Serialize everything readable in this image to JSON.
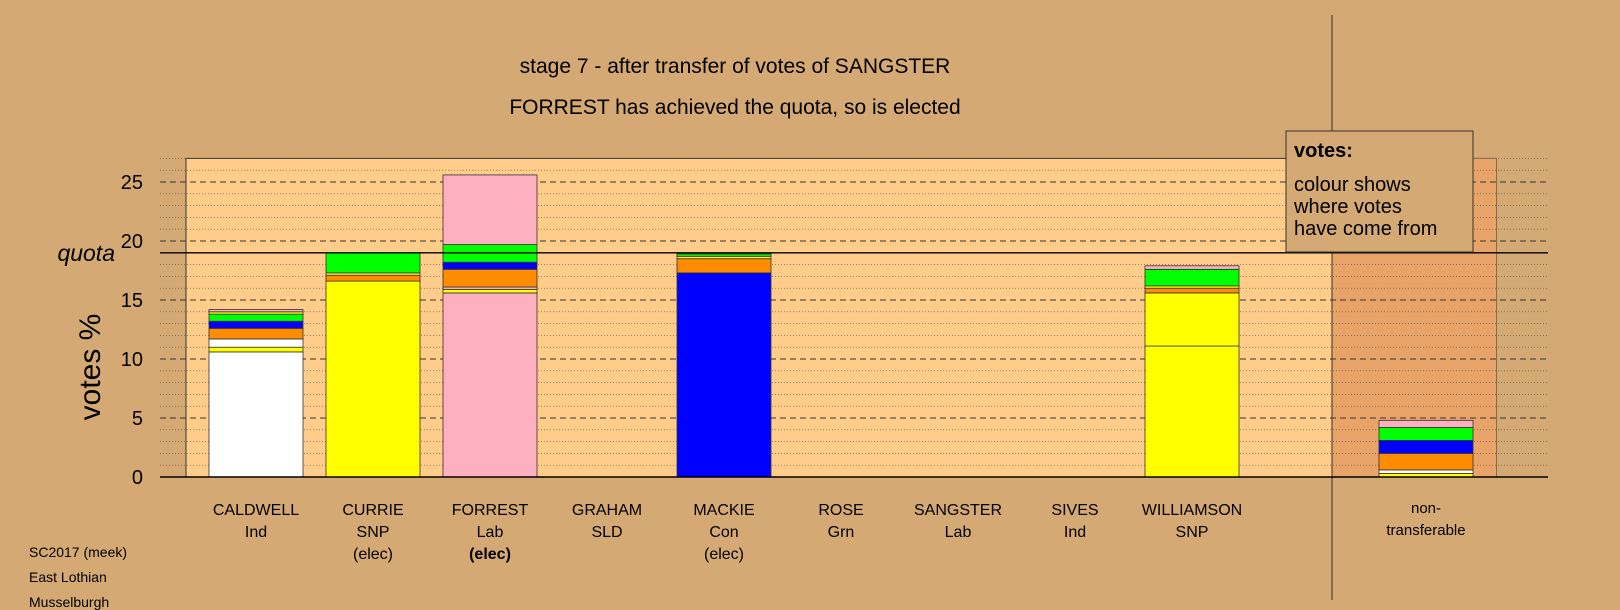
{
  "chart_data": {
    "type": "bar",
    "stacked": true,
    "title": "stage 7 - after transfer of votes of SANGSTER",
    "subtitle": "FORREST has achieved the quota, so is elected",
    "ylabel": "votes %",
    "ylim": [
      0,
      27
    ],
    "yticks": [
      0,
      5,
      10,
      15,
      20,
      25
    ],
    "quota": 19.0,
    "quota_label": "quota",
    "legend": {
      "title": "votes:",
      "lines": [
        "colour shows",
        "where votes",
        "have come from"
      ],
      "placement": "top-right"
    },
    "candidates": [
      {
        "name": "CALDWELL",
        "party": "Ind",
        "status": "",
        "status_bold": false,
        "segments": [
          {
            "value": 10.6,
            "color": "#ffffff"
          },
          {
            "value": 0.4,
            "color": "#ffff00"
          },
          {
            "value": 0.7,
            "color": "#ffffff"
          },
          {
            "value": 0.9,
            "color": "#ff8c00"
          },
          {
            "value": 0.6,
            "color": "#0000ff"
          },
          {
            "value": 0.6,
            "color": "#00ff00"
          },
          {
            "value": 0.2,
            "color": "#ffff00"
          },
          {
            "value": 0.2,
            "color": "#ffb0c0"
          }
        ]
      },
      {
        "name": "CURRIE",
        "party": "SNP",
        "status": "(elec)",
        "status_bold": false,
        "segments": [
          {
            "value": 16.6,
            "color": "#ffff00"
          },
          {
            "value": 0.5,
            "color": "#ff8c00"
          },
          {
            "value": 0.2,
            "color": "#ffff00"
          },
          {
            "value": 1.7,
            "color": "#00ff00"
          }
        ]
      },
      {
        "name": "FORREST",
        "party": "Lab",
        "status": "(elec)",
        "status_bold": true,
        "segments": [
          {
            "value": 15.6,
            "color": "#ffb0c0"
          },
          {
            "value": 0.3,
            "color": "#ffff00"
          },
          {
            "value": 0.2,
            "color": "#ffb0c0"
          },
          {
            "value": 1.5,
            "color": "#ff8c00"
          },
          {
            "value": 0.6,
            "color": "#0000ff"
          },
          {
            "value": 1.5,
            "color": "#00ff00"
          },
          {
            "value": 5.9,
            "color": "#ffb0c0"
          }
        ]
      },
      {
        "name": "GRAHAM",
        "party": "SLD",
        "status": "",
        "status_bold": false,
        "segments": []
      },
      {
        "name": "MACKIE",
        "party": "Con",
        "status": "(elec)",
        "status_bold": false,
        "segments": [
          {
            "value": 17.3,
            "color": "#0000ff"
          },
          {
            "value": 1.2,
            "color": "#ff8c00"
          },
          {
            "value": 0.2,
            "color": "#ffff00"
          },
          {
            "value": 0.2,
            "color": "#00ff00"
          },
          {
            "value": 0.1,
            "color": "#ffb0c0"
          }
        ]
      },
      {
        "name": "ROSE",
        "party": "Grn",
        "status": "",
        "status_bold": false,
        "segments": []
      },
      {
        "name": "SANGSTER",
        "party": "Lab",
        "status": "",
        "status_bold": false,
        "segments": []
      },
      {
        "name": "SIVES",
        "party": "Ind",
        "status": "",
        "status_bold": false,
        "segments": []
      },
      {
        "name": "WILLIAMSON",
        "party": "SNP",
        "status": "",
        "status_bold": false,
        "segments": [
          {
            "value": 11.1,
            "color": "#ffff00"
          },
          {
            "value": 4.5,
            "color": "#ffff00"
          },
          {
            "value": 0.4,
            "color": "#ff8c00"
          },
          {
            "value": 0.2,
            "color": "#ffff00"
          },
          {
            "value": 1.4,
            "color": "#00ff00"
          },
          {
            "value": 0.3,
            "color": "#ffb0c0"
          }
        ]
      }
    ],
    "nontransferable": {
      "label": [
        "non-",
        "transferable"
      ],
      "segments": [
        {
          "value": 0.3,
          "color": "#ffff00"
        },
        {
          "value": 0.3,
          "color": "#ffffff"
        },
        {
          "value": 1.4,
          "color": "#ff8c00"
        },
        {
          "value": 1.1,
          "color": "#0000ff"
        },
        {
          "value": 1.1,
          "color": "#00ff00"
        },
        {
          "value": 0.6,
          "color": "#ffb0c0"
        }
      ]
    }
  },
  "footer": {
    "lines": [
      "SC2017 (meek)",
      "East Lothian",
      "Musselburgh"
    ]
  },
  "colors": {
    "background": "#d4a973",
    "plot_area": "#ffcc8a",
    "right_panel": "#e8a468"
  }
}
